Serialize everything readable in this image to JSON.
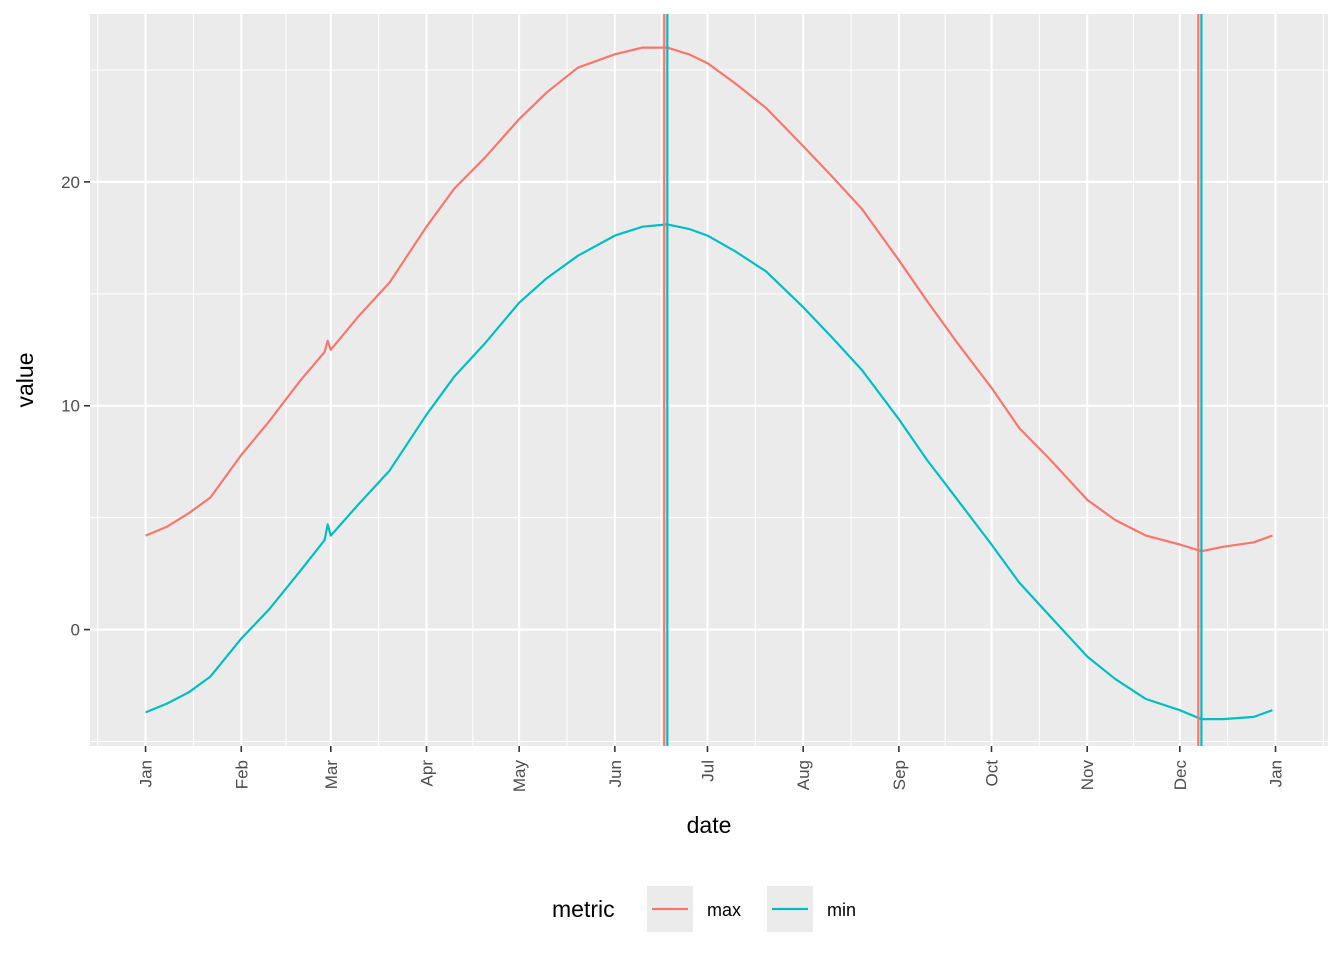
{
  "chart_data": {
    "type": "line",
    "xlabel": "date",
    "ylabel": "value",
    "x_tick_labels": [
      "Jan",
      "Feb",
      "Mar",
      "Apr",
      "May",
      "Jun",
      "Jul",
      "Aug",
      "Sep",
      "Oct",
      "Nov",
      "Dec",
      "Jan"
    ],
    "x_ticks": [
      "2020-01-01",
      "2020-02-01",
      "2020-03-01",
      "2020-04-01",
      "2020-05-01",
      "2020-06-01",
      "2020-07-01",
      "2020-08-01",
      "2020-09-01",
      "2020-10-01",
      "2020-11-01",
      "2020-12-01",
      "2021-01-01"
    ],
    "xlim": [
      "2019-12-14",
      "2021-01-18"
    ],
    "y_ticks": [
      0,
      10,
      20
    ],
    "y_tick_labels": [
      "0",
      "10",
      "20"
    ],
    "ylim": [
      -5.2,
      27.5
    ],
    "grid": true,
    "legend": {
      "title": "metric",
      "position": "bottom",
      "entries": [
        "max",
        "min"
      ]
    },
    "colors": {
      "max": "#F8766D",
      "min": "#00BFC4"
    },
    "series": [
      {
        "name": "max",
        "points": [
          [
            "2020-01-01",
            4.2
          ],
          [
            "2020-01-08",
            4.6
          ],
          [
            "2020-01-15",
            5.2
          ],
          [
            "2020-01-22",
            5.9
          ],
          [
            "2020-02-01",
            7.8
          ],
          [
            "2020-02-10",
            9.3
          ],
          [
            "2020-02-20",
            11.1
          ],
          [
            "2020-02-28",
            12.4
          ],
          [
            "2020-02-29",
            12.9
          ],
          [
            "2020-03-01",
            12.5
          ],
          [
            "2020-03-10",
            14.0
          ],
          [
            "2020-03-20",
            15.5
          ],
          [
            "2020-04-01",
            18.0
          ],
          [
            "2020-04-10",
            19.7
          ],
          [
            "2020-04-20",
            21.1
          ],
          [
            "2020-05-01",
            22.8
          ],
          [
            "2020-05-10",
            24.0
          ],
          [
            "2020-05-20",
            25.1
          ],
          [
            "2020-06-01",
            25.7
          ],
          [
            "2020-06-10",
            26.0
          ],
          [
            "2020-06-18",
            26.0
          ],
          [
            "2020-06-25",
            25.7
          ],
          [
            "2020-07-01",
            25.3
          ],
          [
            "2020-07-10",
            24.4
          ],
          [
            "2020-07-20",
            23.3
          ],
          [
            "2020-08-01",
            21.6
          ],
          [
            "2020-08-10",
            20.3
          ],
          [
            "2020-08-20",
            18.8
          ],
          [
            "2020-09-01",
            16.5
          ],
          [
            "2020-09-10",
            14.7
          ],
          [
            "2020-09-20",
            12.8
          ],
          [
            "2020-10-01",
            10.8
          ],
          [
            "2020-10-10",
            9.0
          ],
          [
            "2020-10-20",
            7.6
          ],
          [
            "2020-11-01",
            5.8
          ],
          [
            "2020-11-10",
            4.9
          ],
          [
            "2020-11-20",
            4.2
          ],
          [
            "2020-12-01",
            3.8
          ],
          [
            "2020-12-08",
            3.5
          ],
          [
            "2020-12-15",
            3.7
          ],
          [
            "2020-12-25",
            3.9
          ],
          [
            "2020-12-31",
            4.2
          ]
        ]
      },
      {
        "name": "min",
        "points": [
          [
            "2020-01-01",
            -3.7
          ],
          [
            "2020-01-08",
            -3.3
          ],
          [
            "2020-01-15",
            -2.8
          ],
          [
            "2020-01-22",
            -2.1
          ],
          [
            "2020-02-01",
            -0.4
          ],
          [
            "2020-02-10",
            0.9
          ],
          [
            "2020-02-20",
            2.6
          ],
          [
            "2020-02-28",
            4.0
          ],
          [
            "2020-02-29",
            4.7
          ],
          [
            "2020-03-01",
            4.2
          ],
          [
            "2020-03-10",
            5.6
          ],
          [
            "2020-03-20",
            7.1
          ],
          [
            "2020-04-01",
            9.6
          ],
          [
            "2020-04-10",
            11.3
          ],
          [
            "2020-04-20",
            12.8
          ],
          [
            "2020-05-01",
            14.6
          ],
          [
            "2020-05-10",
            15.7
          ],
          [
            "2020-05-20",
            16.7
          ],
          [
            "2020-06-01",
            17.6
          ],
          [
            "2020-06-10",
            18.0
          ],
          [
            "2020-06-18",
            18.1
          ],
          [
            "2020-06-25",
            17.9
          ],
          [
            "2020-07-01",
            17.6
          ],
          [
            "2020-07-10",
            16.9
          ],
          [
            "2020-07-20",
            16.0
          ],
          [
            "2020-08-01",
            14.4
          ],
          [
            "2020-08-10",
            13.1
          ],
          [
            "2020-08-20",
            11.6
          ],
          [
            "2020-09-01",
            9.4
          ],
          [
            "2020-09-10",
            7.6
          ],
          [
            "2020-09-20",
            5.8
          ],
          [
            "2020-10-01",
            3.8
          ],
          [
            "2020-10-10",
            2.1
          ],
          [
            "2020-10-20",
            0.6
          ],
          [
            "2020-11-01",
            -1.2
          ],
          [
            "2020-11-10",
            -2.2
          ],
          [
            "2020-11-20",
            -3.1
          ],
          [
            "2020-12-01",
            -3.6
          ],
          [
            "2020-12-08",
            -4.0
          ],
          [
            "2020-12-15",
            -4.0
          ],
          [
            "2020-12-25",
            -3.9
          ],
          [
            "2020-12-31",
            -3.6
          ]
        ]
      }
    ],
    "vlines": [
      {
        "series": "max",
        "date": "2020-06-17"
      },
      {
        "series": "min",
        "date": "2020-06-18"
      },
      {
        "series": "max",
        "date": "2020-12-07"
      },
      {
        "series": "min",
        "date": "2020-12-08"
      }
    ]
  }
}
